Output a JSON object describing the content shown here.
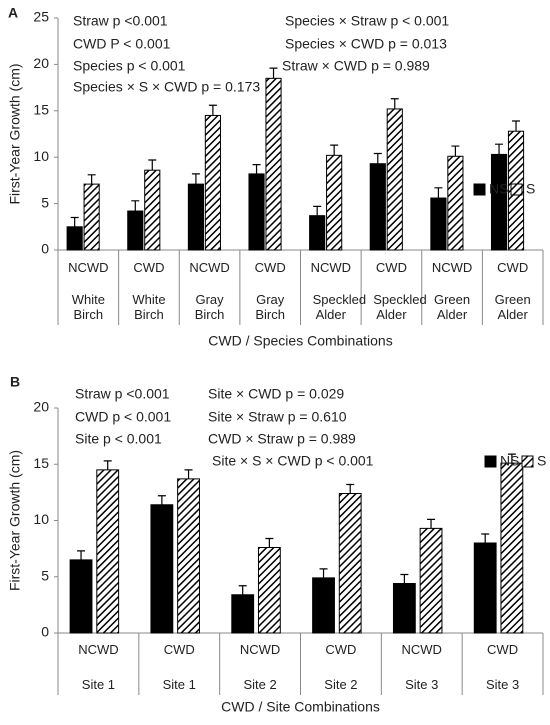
{
  "chart_data": [
    {
      "type": "bar",
      "panel": "A",
      "ylabel": "First-Year Growth (cm)",
      "xlabel": "CWD / Species Combinations",
      "categories": [
        "NCWD",
        "CWD",
        "NCWD",
        "CWD",
        "NCWD",
        "CWD",
        "NCWD",
        "CWD"
      ],
      "category_groups": [
        "White Birch",
        "White Birch",
        "Gray Birch",
        "Gray Birch",
        "Speckled Alder",
        "Speckled Alder",
        "Green Alder",
        "Green Alder"
      ],
      "series": [
        {
          "name": "NS",
          "color": "#000000",
          "pattern": "solid",
          "values": [
            2.5,
            4.2,
            7.1,
            8.2,
            3.7,
            9.3,
            5.6,
            10.3
          ],
          "errors": [
            1.0,
            1.1,
            1.1,
            1.0,
            1.0,
            1.1,
            1.1,
            1.1
          ]
        },
        {
          "name": "S",
          "color": "#000000",
          "pattern": "hatch",
          "values": [
            7.1,
            8.6,
            14.5,
            18.5,
            10.2,
            15.2,
            10.1,
            12.8
          ],
          "errors": [
            1.0,
            1.1,
            1.1,
            1.1,
            1.1,
            1.1,
            1.1,
            1.1
          ]
        }
      ],
      "ylim": [
        0,
        25
      ],
      "yticks": [
        0,
        5,
        10,
        15,
        20,
        25
      ],
      "grid": false,
      "annotations": [
        "Straw p <0.001",
        "CWD P < 0.001",
        "Species p < 0.001",
        "Species × S × CWD p = 0.173",
        "Species × Straw p < 0.001",
        "Species × CWD p = 0.013",
        "Straw × CWD p = 0.989"
      ]
    },
    {
      "type": "bar",
      "panel": "B",
      "ylabel": "First-Year Growth (cm)",
      "xlabel": "CWD / Site Combinations",
      "categories": [
        "NCWD",
        "CWD",
        "NCWD",
        "CWD",
        "NCWD",
        "CWD"
      ],
      "category_groups": [
        "Site 1",
        "Site 1",
        "Site 2",
        "Site 2",
        "Site 3",
        "Site 3"
      ],
      "series": [
        {
          "name": "NS",
          "color": "#000000",
          "pattern": "solid",
          "values": [
            6.5,
            11.4,
            3.4,
            4.9,
            4.4,
            8.0
          ],
          "errors": [
            0.8,
            0.8,
            0.8,
            0.8,
            0.8,
            0.8
          ]
        },
        {
          "name": "S",
          "color": "#000000",
          "pattern": "hatch",
          "values": [
            14.5,
            13.7,
            7.6,
            12.4,
            9.3,
            15.1
          ],
          "errors": [
            0.8,
            0.8,
            0.8,
            0.8,
            0.8,
            0.8
          ]
        }
      ],
      "ylim": [
        0,
        20
      ],
      "yticks": [
        0,
        5,
        10,
        15,
        20
      ],
      "grid": false,
      "annotations": [
        "Straw p <0.001",
        "CWD p < 0.001",
        "Site p < 0.001",
        "Site × CWD p = 0.029",
        "Site × Straw p = 0.610",
        "CWD × Straw p = 0.989",
        "Site × S × CWD p < 0.001"
      ]
    }
  ]
}
